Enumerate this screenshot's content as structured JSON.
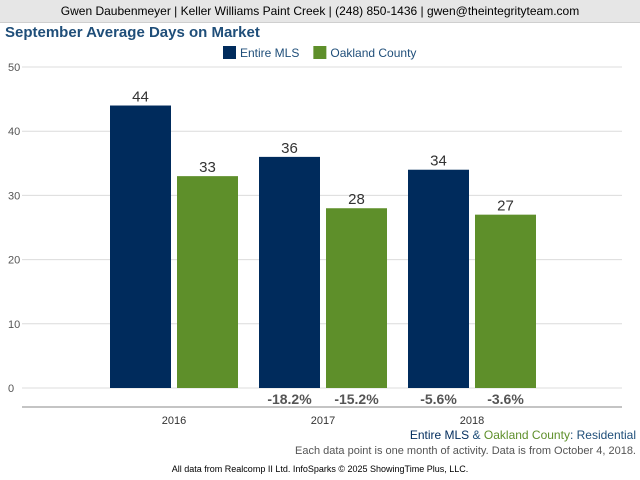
{
  "header": {
    "text": "Gwen Daubenmeyer | Keller Williams Paint Creek | (248) 850-1436 | gwen@theintegrityteam.com"
  },
  "colors": {
    "entire_mls": "#002b5c",
    "oakland_county": "#5e8f2a"
  },
  "chart_data": {
    "type": "bar",
    "title": "September Average Days on Market",
    "categories": [
      "2016",
      "2017",
      "2018"
    ],
    "series": [
      {
        "name": "Entire MLS",
        "values": [
          44,
          36,
          34
        ],
        "changes": [
          "",
          "-18.2%",
          "-5.6%"
        ]
      },
      {
        "name": "Oakland County",
        "values": [
          33,
          28,
          27
        ],
        "changes": [
          "",
          "-15.2%",
          "-3.6%"
        ]
      }
    ],
    "ylim": [
      0,
      50
    ],
    "yticks": [
      0,
      10,
      20,
      30,
      40,
      50
    ],
    "grid": true,
    "legend": "top-center"
  },
  "footnote": {
    "series_a": "Entire MLS",
    "amp": "&",
    "series_b": "Oakland County",
    "suffix": ": Residential",
    "note": "Each data point is one month of activity. Data is from October 4, 2018."
  },
  "credit": "All data from Realcomp II Ltd. InfoSparks © 2025 ShowingTime Plus, LLC."
}
